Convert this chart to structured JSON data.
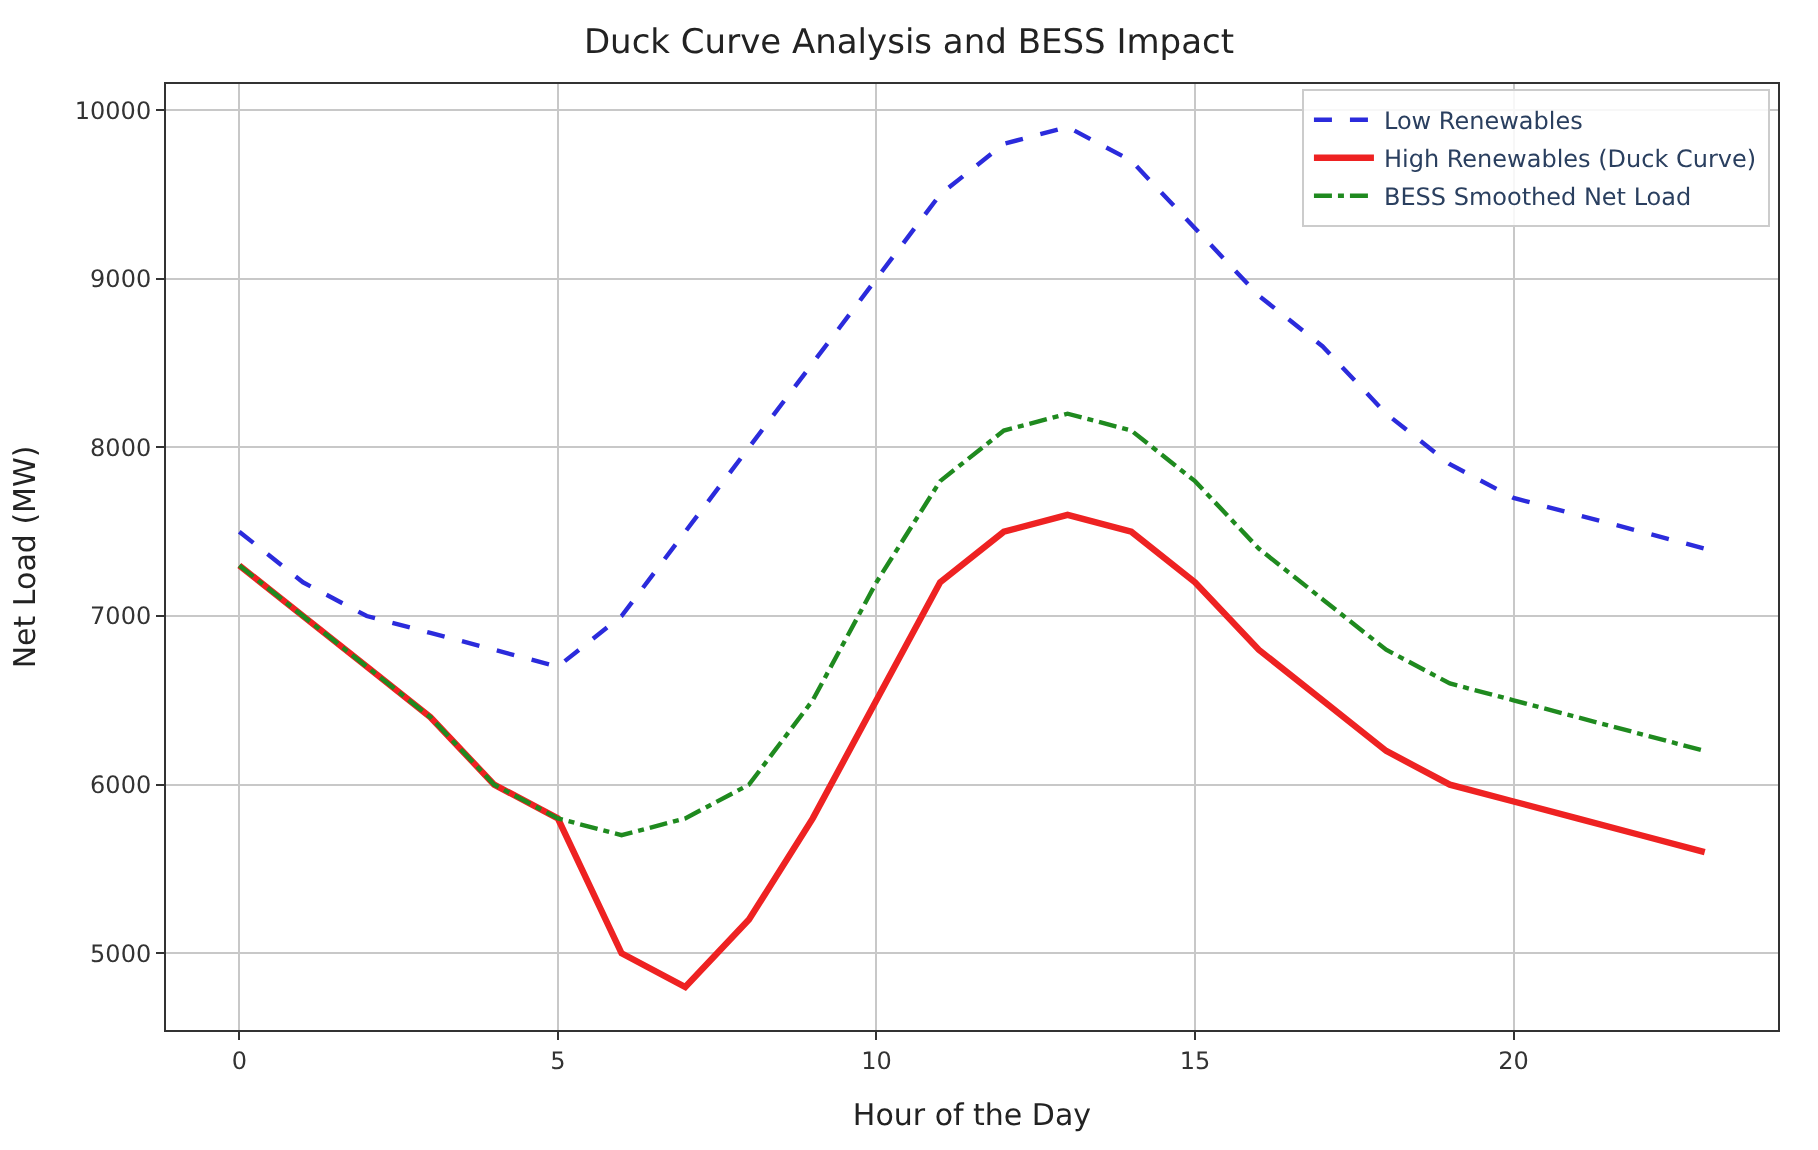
{
  "chart_data": {
    "type": "line",
    "title": "Duck Curve Analysis and BESS Impact",
    "xlabel": "Hour of the Day",
    "ylabel": "Net Load (MW)",
    "x": [
      0,
      1,
      2,
      3,
      4,
      5,
      6,
      7,
      8,
      9,
      10,
      11,
      12,
      13,
      14,
      15,
      16,
      17,
      18,
      19,
      20,
      21,
      22,
      23
    ],
    "series": [
      {
        "name": "Low Renewables",
        "color": "#2b2bdc",
        "line_style": "dashed",
        "values": [
          7500,
          7200,
          7000,
          6900,
          6800,
          6700,
          7000,
          7500,
          8000,
          8500,
          9000,
          9500,
          9800,
          9900,
          9700,
          9300,
          8900,
          8600,
          8200,
          7900,
          7700,
          7600,
          7500,
          7400
        ]
      },
      {
        "name": "High Renewables (Duck Curve)",
        "color": "#ee2222",
        "line_style": "solid",
        "values": [
          7300,
          7000,
          6700,
          6400,
          6000,
          5800,
          5000,
          4800,
          5200,
          5800,
          6500,
          7200,
          7500,
          7600,
          7500,
          7200,
          6800,
          6500,
          6200,
          6000,
          5900,
          5800,
          5700,
          5600
        ]
      },
      {
        "name": "BESS Smoothed Net Load",
        "color": "#1f8a1f",
        "line_style": "dashdot",
        "values": [
          7300,
          7000,
          6700,
          6400,
          6000,
          5800,
          5700,
          5800,
          6000,
          6500,
          7200,
          7800,
          8100,
          8200,
          8100,
          7800,
          7400,
          7100,
          6800,
          6600,
          6500,
          6400,
          6300,
          6200
        ]
      }
    ],
    "xlim": [
      -1.15,
      24.15
    ],
    "ylim": [
      4545,
      10155
    ],
    "xticks": [
      0,
      5,
      10,
      15,
      20
    ],
    "yticks": [
      5000,
      6000,
      7000,
      8000,
      9000,
      10000
    ],
    "grid": true,
    "legend": "top right",
    "marker": "none"
  }
}
